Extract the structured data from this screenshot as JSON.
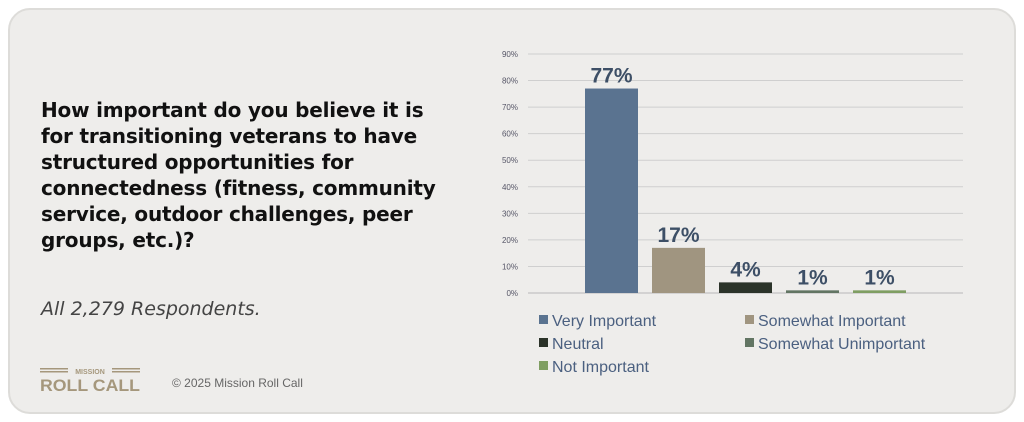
{
  "question": "How important do you believe it is for transitioning veterans to have structured opportunities for connectedness (fitness, community service, outdoor challenges, peer groups, etc.)?",
  "respondents": "All 2,279 Respondents.",
  "logo_text": [
    "MISSION",
    "ROLL CALL"
  ],
  "copyright": "© 2025 Mission Roll Call",
  "chart_data": {
    "type": "bar",
    "categories": [
      "Very Important",
      "Somewhat Important",
      "Neutral",
      "Somewhat Unimportant",
      "Not Important"
    ],
    "values": [
      77,
      17,
      4,
      1,
      1
    ],
    "data_labels": [
      "77%",
      "17%",
      "4%",
      "1%",
      "1%"
    ],
    "colors": [
      "#5a7390",
      "#a09580",
      "#2b3329",
      "#627563",
      "#7f9e62"
    ],
    "ylim": [
      0,
      90
    ],
    "yticks": [
      "0%",
      "10%",
      "20%",
      "30%",
      "40%",
      "50%",
      "60%",
      "70%",
      "80%",
      "90%"
    ],
    "grid": true,
    "legend": "bottom",
    "title": "",
    "xlabel": "",
    "ylabel": ""
  }
}
